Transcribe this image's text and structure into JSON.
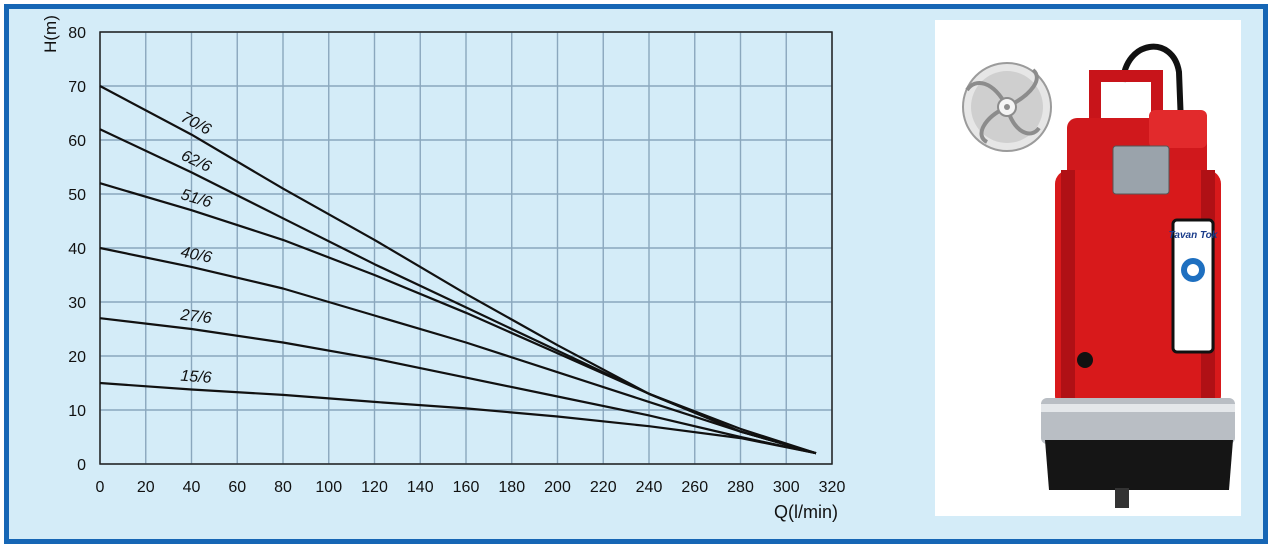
{
  "chart_data": {
    "type": "line",
    "xlabel": "Q(l/min)",
    "ylabel": "H(m)",
    "xlim": [
      0,
      320
    ],
    "ylim": [
      0,
      80
    ],
    "xticks": [
      0,
      20,
      40,
      60,
      80,
      100,
      120,
      140,
      160,
      180,
      200,
      220,
      240,
      260,
      280,
      300,
      320
    ],
    "yticks": [
      0,
      10,
      20,
      30,
      40,
      50,
      60,
      70,
      80
    ],
    "grid": true,
    "series": [
      {
        "name": "70/6",
        "points": [
          [
            0,
            70
          ],
          [
            40,
            61
          ],
          [
            80,
            51
          ],
          [
            120,
            41.5
          ],
          [
            160,
            31.5
          ],
          [
            200,
            22
          ],
          [
            240,
            13
          ],
          [
            280,
            6
          ],
          [
            313,
            2
          ]
        ]
      },
      {
        "name": "62/6",
        "points": [
          [
            0,
            62
          ],
          [
            40,
            54
          ],
          [
            80,
            45.5
          ],
          [
            120,
            37
          ],
          [
            160,
            29
          ],
          [
            200,
            21
          ],
          [
            240,
            13
          ],
          [
            280,
            6.5
          ],
          [
            313,
            2
          ]
        ]
      },
      {
        "name": "51/6",
        "points": [
          [
            0,
            52
          ],
          [
            40,
            47
          ],
          [
            80,
            41.5
          ],
          [
            120,
            35
          ],
          [
            160,
            28
          ],
          [
            200,
            20.5
          ],
          [
            240,
            13
          ],
          [
            280,
            6
          ],
          [
            313,
            2
          ]
        ]
      },
      {
        "name": "40/6",
        "points": [
          [
            0,
            40
          ],
          [
            40,
            36.5
          ],
          [
            80,
            32.5
          ],
          [
            120,
            27.5
          ],
          [
            160,
            22.5
          ],
          [
            200,
            17
          ],
          [
            240,
            11.5
          ],
          [
            280,
            6
          ],
          [
            313,
            2
          ]
        ]
      },
      {
        "name": "27/6",
        "points": [
          [
            0,
            27
          ],
          [
            40,
            25
          ],
          [
            80,
            22.5
          ],
          [
            120,
            19.5
          ],
          [
            160,
            16
          ],
          [
            200,
            12.5
          ],
          [
            240,
            9
          ],
          [
            280,
            5
          ],
          [
            313,
            2
          ]
        ]
      },
      {
        "name": "15/6",
        "points": [
          [
            0,
            15
          ],
          [
            40,
            13.8
          ],
          [
            80,
            12.8
          ],
          [
            120,
            11.5
          ],
          [
            160,
            10.3
          ],
          [
            200,
            8.8
          ],
          [
            240,
            7
          ],
          [
            280,
            4.8
          ],
          [
            313,
            2
          ]
        ]
      }
    ]
  },
  "product_image": {
    "brand_text": "Tavan Tok",
    "colors": {
      "pump_body": "#d8191b",
      "steel_band": "#b9bec4",
      "base": "#151515"
    }
  },
  "colors": {
    "frame": "#1666b5",
    "plot_background": "#d4ecf8",
    "grid": "#8aa7bd",
    "curves": "#111111"
  }
}
